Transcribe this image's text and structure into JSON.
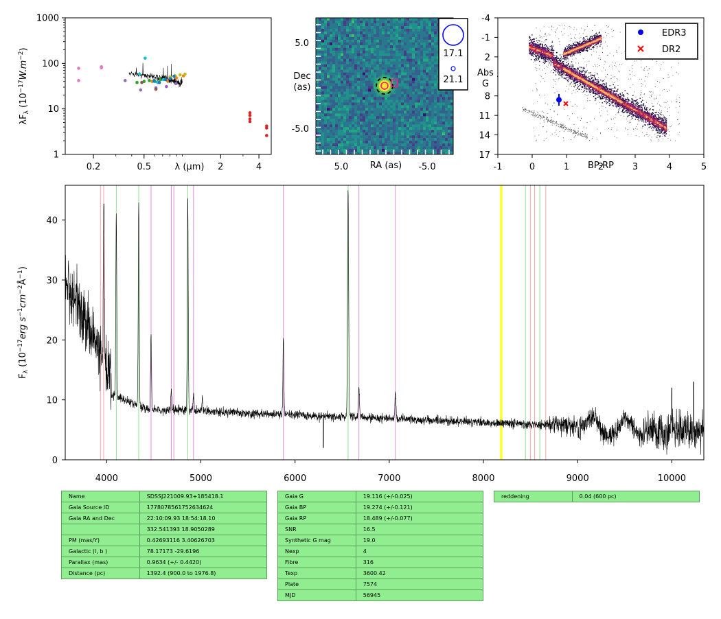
{
  "chart_data": [
    {
      "type": "scatter",
      "panel": "sed",
      "xlabel": "λ (μm)",
      "ylabel": "λF_λ (10^-17 W.m^-2)",
      "xscale": "log",
      "yscale": "log",
      "xlim": [
        0.12,
        5.0
      ],
      "ylim": [
        1,
        1000
      ],
      "xticks": [
        0.2,
        0.5,
        2,
        4
      ],
      "yticks": [
        "1",
        "10",
        "100",
        "1000"
      ],
      "series": [
        {
          "color": "#e377c2",
          "x": [
            0.153,
            0.153,
            0.231,
            0.231
          ],
          "y": [
            78,
            42,
            84,
            80
          ]
        },
        {
          "color": "#9467bd",
          "x": [
            0.355,
            0.47,
            0.62,
            0.75,
            0.89
          ],
          "y": [
            42,
            26,
            29,
            31,
            36
          ]
        },
        {
          "color": "#8c564b",
          "x": [
            0.48,
            0.62
          ],
          "y": [
            38,
            27
          ]
        },
        {
          "color": "#2ca02c",
          "x": [
            0.44,
            0.5,
            0.55,
            0.61,
            0.67
          ],
          "y": [
            38,
            40,
            42,
            40,
            44
          ]
        },
        {
          "color": "#ff7f0e",
          "x": [
            0.58,
            0.76,
            0.9,
            1.02
          ],
          "y": [
            40,
            42,
            48,
            53
          ]
        },
        {
          "color": "#bcbd22",
          "x": [
            0.8,
            0.88,
            0.96,
            1.05
          ],
          "y": [
            50,
            53,
            56,
            58
          ]
        },
        {
          "color": "#17becf",
          "x": [
            0.46,
            0.51,
            0.6,
            0.64,
            0.71
          ],
          "y": [
            58,
            130,
            40,
            38,
            44
          ]
        },
        {
          "color": "#1f77b4",
          "x": [
            0.6,
            0.66,
            0.74,
            0.8,
            0.86
          ],
          "y": [
            42,
            38,
            44,
            46,
            52
          ]
        },
        {
          "color": "#d62728",
          "x": [
            3.4,
            3.4,
            3.4,
            3.4,
            4.6,
            4.6,
            4.6
          ],
          "y": [
            8.2,
            7.2,
            6.0,
            5.3,
            4.2,
            3.8,
            2.6
          ]
        }
      ]
    },
    {
      "type": "heatmap",
      "panel": "image",
      "xlabel": "RA (as)",
      "ylabel": "Dec\n(as)",
      "xlim": [
        8.5,
        -8.5
      ],
      "ylim": [
        -8.5,
        8.5
      ],
      "xticks": [
        "5.0",
        "-5.0"
      ],
      "yticks": [
        "5.0",
        "-5.0"
      ],
      "legend": [
        {
          "label": "17.1"
        },
        {
          "label": "21.1"
        }
      ]
    },
    {
      "type": "scatter",
      "panel": "hr",
      "xlabel": "BP-RP",
      "ylabel": "Abs\nG",
      "xlim": [
        -1,
        5
      ],
      "ylim": [
        17,
        -4
      ],
      "xticks": [
        "-1",
        "0",
        "1",
        "2",
        "3",
        "4",
        "5"
      ],
      "yticks": [
        "-4",
        "-1",
        "2",
        "5",
        "8",
        "11",
        "14",
        "17"
      ],
      "series": [
        {
          "name": "EDR3",
          "color": "#0000ff",
          "marker": "o",
          "x": [
            0.78
          ],
          "y": [
            8.6
          ],
          "yerr": [
            0.9
          ]
        },
        {
          "name": "DR2",
          "color": "#ff0000",
          "marker": "x",
          "x": [
            0.98
          ],
          "y": [
            9.2
          ]
        }
      ],
      "legend_placement": "top-right"
    },
    {
      "type": "line",
      "panel": "spectrum",
      "xlabel": "",
      "ylabel": "F_λ (10^-17 erg s^-1 cm^-2 Å^-1)",
      "xlim": [
        3560,
        10340
      ],
      "ylim": [
        0,
        45.8
      ],
      "xticks": [
        "4000",
        "5000",
        "6000",
        "7000",
        "8000",
        "9000",
        "10000"
      ],
      "yticks": [
        "0",
        "10",
        "20",
        "30",
        "40"
      ],
      "emission_lines": [
        {
          "wl": 3970,
          "peak": 44
        },
        {
          "wl": 4102,
          "peak": 41
        },
        {
          "wl": 4340,
          "peak": 43
        },
        {
          "wl": 4471,
          "peak": 21
        },
        {
          "wl": 4686,
          "peak": 12
        },
        {
          "wl": 4861,
          "peak": 44
        },
        {
          "wl": 4922,
          "peak": 11
        },
        {
          "wl": 5016,
          "peak": 10
        },
        {
          "wl": 5876,
          "peak": 20
        },
        {
          "wl": 6563,
          "peak": 45
        },
        {
          "wl": 6678,
          "peak": 12
        },
        {
          "wl": 7065,
          "peak": 11
        }
      ],
      "marker_lines": [
        {
          "wl": 3934,
          "color": "#f4a6a6"
        },
        {
          "wl": 3968,
          "color": "#f4a6a6"
        },
        {
          "wl": 4102,
          "color": "#8fe08f"
        },
        {
          "wl": 4340,
          "color": "#8fe08f"
        },
        {
          "wl": 4471,
          "color": "#dc8fdc"
        },
        {
          "wl": 4686,
          "color": "#dc8fdc"
        },
        {
          "wl": 4713,
          "color": "#dc8fdc"
        },
        {
          "wl": 4861,
          "color": "#8fe08f"
        },
        {
          "wl": 4922,
          "color": "#dc8fdc"
        },
        {
          "wl": 5876,
          "color": "#dc8fdc"
        },
        {
          "wl": 6563,
          "color": "#8fe08f"
        },
        {
          "wl": 6678,
          "color": "#dc8fdc"
        },
        {
          "wl": 7065,
          "color": "#dc8fdc"
        },
        {
          "wl": 8183,
          "color": "#ffff33"
        },
        {
          "wl": 8195,
          "color": "#ffff33"
        },
        {
          "wl": 8446,
          "color": "#8fe08f"
        },
        {
          "wl": 8498,
          "color": "#f4a6a6"
        },
        {
          "wl": 8542,
          "color": "#f4a6a6"
        },
        {
          "wl": 8598,
          "color": "#8fe08f"
        },
        {
          "wl": 8662,
          "color": "#f4a6a6"
        }
      ]
    }
  ],
  "tables": {
    "t1": [
      [
        "Name",
        "SDSSJ221009.93+185418.1"
      ],
      [
        "Gaia Source ID",
        "1778078561752634624"
      ],
      [
        "Gaia RA and Dec",
        "22:10:09.93    18:54:18.10"
      ],
      [
        "",
        "332.541393    18.9050289"
      ],
      [
        "PM (mas/Y)",
        "0.42693116    3.40626703"
      ],
      [
        "Galactic (l, b )",
        "78.17173    -29.6196"
      ],
      [
        "Parallax (mas)",
        "0.9634 (+/- 0.4420)"
      ],
      [
        "Distance (pc)",
        "1392.4 (900.0 to 1976.8)"
      ]
    ],
    "t2": [
      [
        "Gaia G",
        "19.116 (+/-0.025)"
      ],
      [
        "Gaia BP",
        "19.274 (+/-0.121)"
      ],
      [
        "Gaia RP",
        "18.489 (+/-0.077)"
      ],
      [
        "SNR",
        "16.5"
      ],
      [
        "Synthetic G mag",
        "19.0"
      ],
      [
        "Nexp",
        "4"
      ],
      [
        "Fibre",
        "316"
      ],
      [
        "Texp",
        "3600.42"
      ],
      [
        "Plate",
        "7574"
      ],
      [
        "MJD",
        "56945"
      ]
    ],
    "t3": [
      [
        "reddening",
        "0.04 (600 pc)"
      ]
    ]
  }
}
